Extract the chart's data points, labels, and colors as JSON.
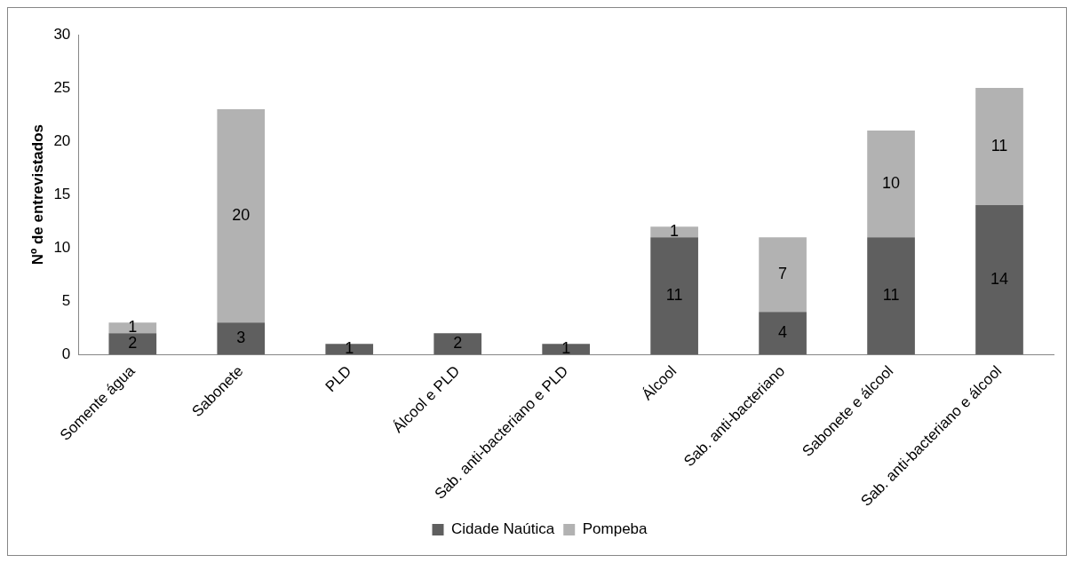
{
  "chart_data": {
    "type": "bar",
    "stacked": true,
    "ylabel": "Nº de entrevistados",
    "categories": [
      "Somente água",
      "Sabonete",
      "PLD",
      "Álcool e PLD",
      "Sab. anti-bacteriano e PLD",
      "Álcool",
      "Sab. anti-bacteriano",
      "Sabonete e álcool",
      "Sab. anti-bacteriano e álcool"
    ],
    "series": [
      {
        "name": "Cidade Naútica",
        "color": "#5f5f5f",
        "values": [
          2,
          3,
          1,
          2,
          1,
          11,
          4,
          11,
          14
        ]
      },
      {
        "name": "Pompeba",
        "color": "#b2b2b2",
        "values": [
          1,
          20,
          null,
          null,
          null,
          1,
          7,
          10,
          11
        ]
      }
    ],
    "ylim": [
      0,
      30
    ],
    "yticks": [
      0,
      5,
      10,
      15,
      20,
      25,
      30
    ],
    "grid": false,
    "legend": "bottom",
    "data_labels": true
  }
}
